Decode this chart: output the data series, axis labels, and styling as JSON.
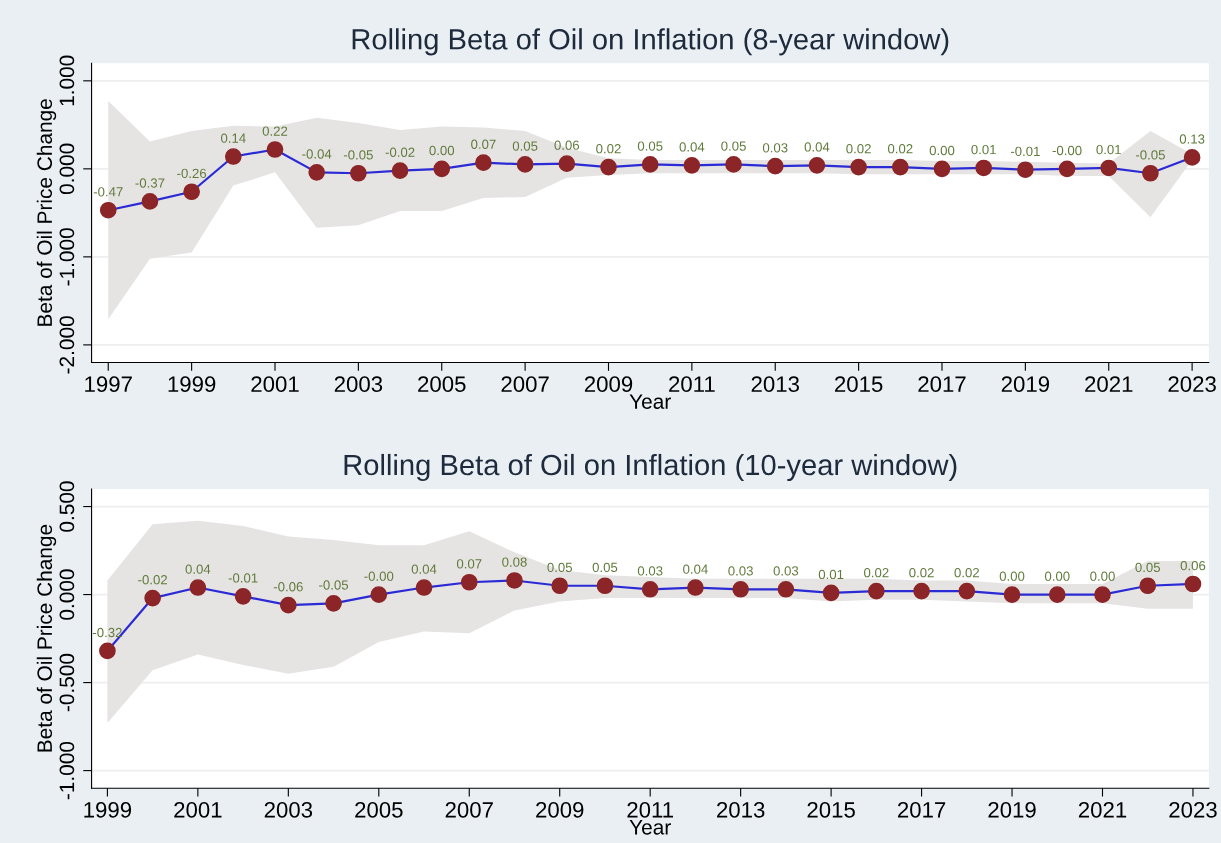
{
  "chart_data": [
    {
      "type": "line",
      "title": "Rolling Beta of Oil on Inflation (8-year window)",
      "xlabel": "Year",
      "ylabel": "Beta of Oil Price Change",
      "x": [
        1997,
        1998,
        1999,
        2000,
        2001,
        2002,
        2003,
        2004,
        2005,
        2006,
        2007,
        2008,
        2009,
        2010,
        2011,
        2012,
        2013,
        2014,
        2015,
        2016,
        2017,
        2018,
        2019,
        2020,
        2021,
        2022,
        2023
      ],
      "series": [
        {
          "color": "#2b2bd6",
          "values": [
            -0.47,
            -0.37,
            -0.26,
            0.14,
            0.22,
            -0.04,
            -0.05,
            -0.02,
            0.0,
            0.07,
            0.05,
            0.06,
            0.02,
            0.05,
            0.04,
            0.05,
            0.03,
            0.04,
            0.02,
            0.02,
            0.0,
            0.01,
            -0.01,
            -0.0,
            0.01,
            -0.05,
            0.13
          ],
          "value_labels": [
            "-0.47",
            "-0.37",
            "-0.26",
            "0.14",
            "0.22",
            "-0.04",
            "-0.05",
            "-0.02",
            "0.00",
            "0.07",
            "0.05",
            "0.06",
            "0.02",
            "0.05",
            "0.04",
            "0.05",
            "0.03",
            "0.04",
            "0.02",
            "0.02",
            "0.00",
            "0.01",
            "-0.01",
            "-0.00",
            "0.01",
            "-0.05",
            "0.13"
          ],
          "lower": [
            -1.71,
            -1.02,
            -0.95,
            -0.19,
            -0.04,
            -0.67,
            -0.64,
            -0.48,
            -0.48,
            -0.33,
            -0.32,
            -0.1,
            -0.07,
            -0.05,
            -0.05,
            -0.05,
            -0.05,
            -0.05,
            -0.06,
            -0.06,
            -0.06,
            -0.06,
            -0.06,
            -0.08,
            -0.08,
            -0.55,
            0.1
          ],
          "upper": [
            0.77,
            0.31,
            0.43,
            0.49,
            0.48,
            0.58,
            0.52,
            0.44,
            0.48,
            0.47,
            0.43,
            0.24,
            0.12,
            0.1,
            0.1,
            0.1,
            0.1,
            0.1,
            0.1,
            0.1,
            0.09,
            0.09,
            0.08,
            0.07,
            0.06,
            0.43,
            0.17
          ]
        }
      ],
      "xlim": [
        1996.6,
        2023.4
      ],
      "xticks": [
        1997,
        1999,
        2001,
        2003,
        2005,
        2007,
        2009,
        2011,
        2013,
        2015,
        2017,
        2019,
        2021,
        2023
      ],
      "ylim": [
        -2.2,
        1.2
      ],
      "yticks": [
        {
          "value": -2,
          "label": "-2.000"
        },
        {
          "value": -1,
          "label": "-1.000"
        },
        {
          "value": 0,
          "label": "0.000"
        },
        {
          "value": 1,
          "label": "1.000"
        }
      ],
      "grid": "y",
      "marker": "circle",
      "line_style": "solid"
    },
    {
      "type": "line",
      "title": "Rolling Beta of Oil on Inflation (10-year window)",
      "xlabel": "Year",
      "ylabel": "Beta of Oil Price Change",
      "x": [
        1999,
        2000,
        2001,
        2002,
        2003,
        2004,
        2005,
        2006,
        2007,
        2008,
        2009,
        2010,
        2011,
        2012,
        2013,
        2014,
        2015,
        2016,
        2017,
        2018,
        2019,
        2020,
        2021,
        2022,
        2023
      ],
      "series": [
        {
          "color": "#2b2bd6",
          "values": [
            -0.32,
            -0.02,
            0.04,
            -0.01,
            -0.06,
            -0.05,
            -0.0,
            0.04,
            0.07,
            0.08,
            0.05,
            0.05,
            0.03,
            0.04,
            0.03,
            0.03,
            0.01,
            0.02,
            0.02,
            0.02,
            0.0,
            0.0,
            0.0,
            0.05,
            0.06
          ],
          "value_labels": [
            "-0.32",
            "-0.02",
            "0.04",
            "-0.01",
            "-0.06",
            "-0.05",
            "-0.00",
            "0.04",
            "0.07",
            "0.08",
            "0.05",
            "0.05",
            "0.03",
            "0.04",
            "0.03",
            "0.03",
            "0.01",
            "0.02",
            "0.02",
            "0.02",
            "0.00",
            "0.00",
            "0.00",
            "0.05",
            "0.06"
          ],
          "lower": [
            -0.73,
            -0.43,
            -0.34,
            -0.4,
            -0.45,
            -0.41,
            -0.27,
            -0.21,
            -0.22,
            -0.09,
            -0.04,
            -0.02,
            -0.02,
            -0.02,
            -0.02,
            -0.02,
            -0.04,
            -0.03,
            -0.03,
            -0.04,
            -0.05,
            -0.05,
            -0.05,
            -0.08,
            -0.08
          ],
          "upper": [
            0.08,
            0.4,
            0.42,
            0.39,
            0.33,
            0.31,
            0.28,
            0.28,
            0.36,
            0.24,
            0.14,
            0.11,
            0.1,
            0.09,
            0.09,
            0.09,
            0.09,
            0.09,
            0.08,
            0.08,
            0.06,
            0.06,
            0.06,
            0.19,
            0.19
          ]
        }
      ],
      "xlim": [
        1998.65,
        2023.35
      ],
      "xticks": [
        1999,
        2001,
        2003,
        2005,
        2007,
        2009,
        2011,
        2013,
        2015,
        2017,
        2019,
        2021,
        2023
      ],
      "ylim": [
        -1.1,
        0.6
      ],
      "yticks": [
        {
          "value": -1,
          "label": "-1.000"
        },
        {
          "value": -0.5,
          "label": "-0.500"
        },
        {
          "value": 0,
          "label": "0.000"
        },
        {
          "value": 0.5,
          "label": "0.500"
        }
      ],
      "grid": "y",
      "marker": "circle",
      "line_style": "solid"
    }
  ]
}
